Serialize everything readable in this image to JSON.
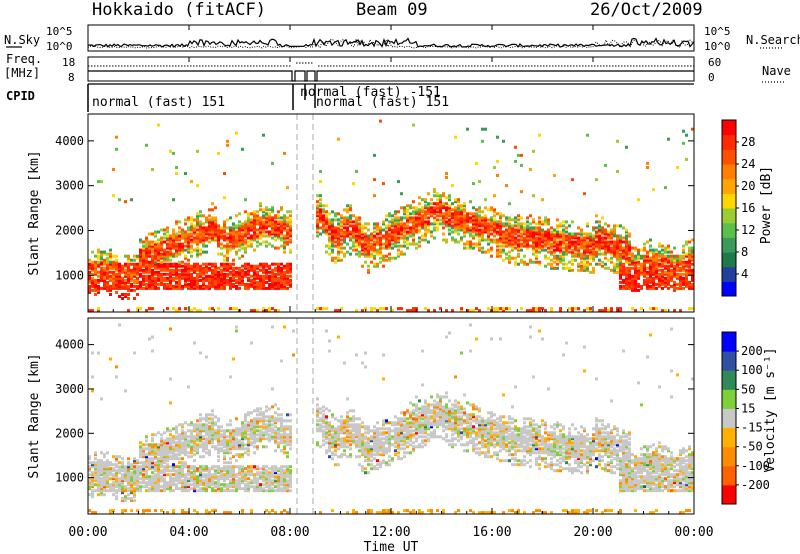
{
  "header": {
    "title": "Hokkaido (fitACF)",
    "beam": "Beam 09",
    "date": "26/Oct/2009"
  },
  "nsky": {
    "label": "N.Sky",
    "right_label": "N.Search",
    "tick_top": "10^5",
    "tick_bottom": "10^0"
  },
  "freq": {
    "label_line1": "Freq.",
    "label_line2": "[MHz]",
    "right_label": "Nave",
    "left_ticks": [
      "18",
      "8"
    ],
    "right_ticks": [
      "60",
      "0"
    ]
  },
  "cpid": {
    "label": "CPID",
    "segments": [
      "normal (fast) 151",
      "normal (fast) -151",
      "normal (fast) 151"
    ]
  },
  "chart_data": [
    {
      "type": "heatmap",
      "name": "power",
      "ylabel": "Slant Range [km]",
      "yticks": [
        "1000",
        "2000",
        "3000",
        "4000"
      ],
      "ylim": [
        180,
        4600
      ],
      "xlim_hours": [
        0,
        24
      ],
      "colorbar": {
        "label": "Power [dB]",
        "ticks": [
          "4",
          "8",
          "12",
          "16",
          "20",
          "24",
          "28"
        ],
        "colors": [
          "#0000ff",
          "#2040a0",
          "#1f7a4a",
          "#3a9a5a",
          "#5cbf4a",
          "#9acd32",
          "#ffd700",
          "#ffa500",
          "#ff7f00",
          "#ff5000",
          "#ff2a00",
          "#ff0000"
        ]
      }
    },
    {
      "type": "heatmap",
      "name": "velocity",
      "ylabel": "Slant Range [km]",
      "yticks": [
        "1000",
        "2000",
        "3000",
        "4000"
      ],
      "ylim": [
        180,
        4600
      ],
      "xlim_hours": [
        0,
        24
      ],
      "colorbar": {
        "label": "Velocity [m s⁻¹]",
        "ticks": [
          "-200",
          "-100",
          "-50",
          "-15",
          "15",
          "50",
          "100",
          "200"
        ],
        "colors": [
          "#ff0000",
          "#ff6000",
          "#ff8c00",
          "#ffb000",
          "#c8c8c8",
          "#7fcf3a",
          "#2e8b57",
          "#3050a0",
          "#0000ff"
        ]
      }
    }
  ],
  "xaxis": {
    "label": "Time UT",
    "ticks": [
      "00:00",
      "04:00",
      "08:00",
      "12:00",
      "16:00",
      "20:00",
      "00:00"
    ]
  },
  "colors": {
    "grey_scatter": "#c8c8c8",
    "power_hot": "#ff2a00",
    "axes": "#000000"
  }
}
